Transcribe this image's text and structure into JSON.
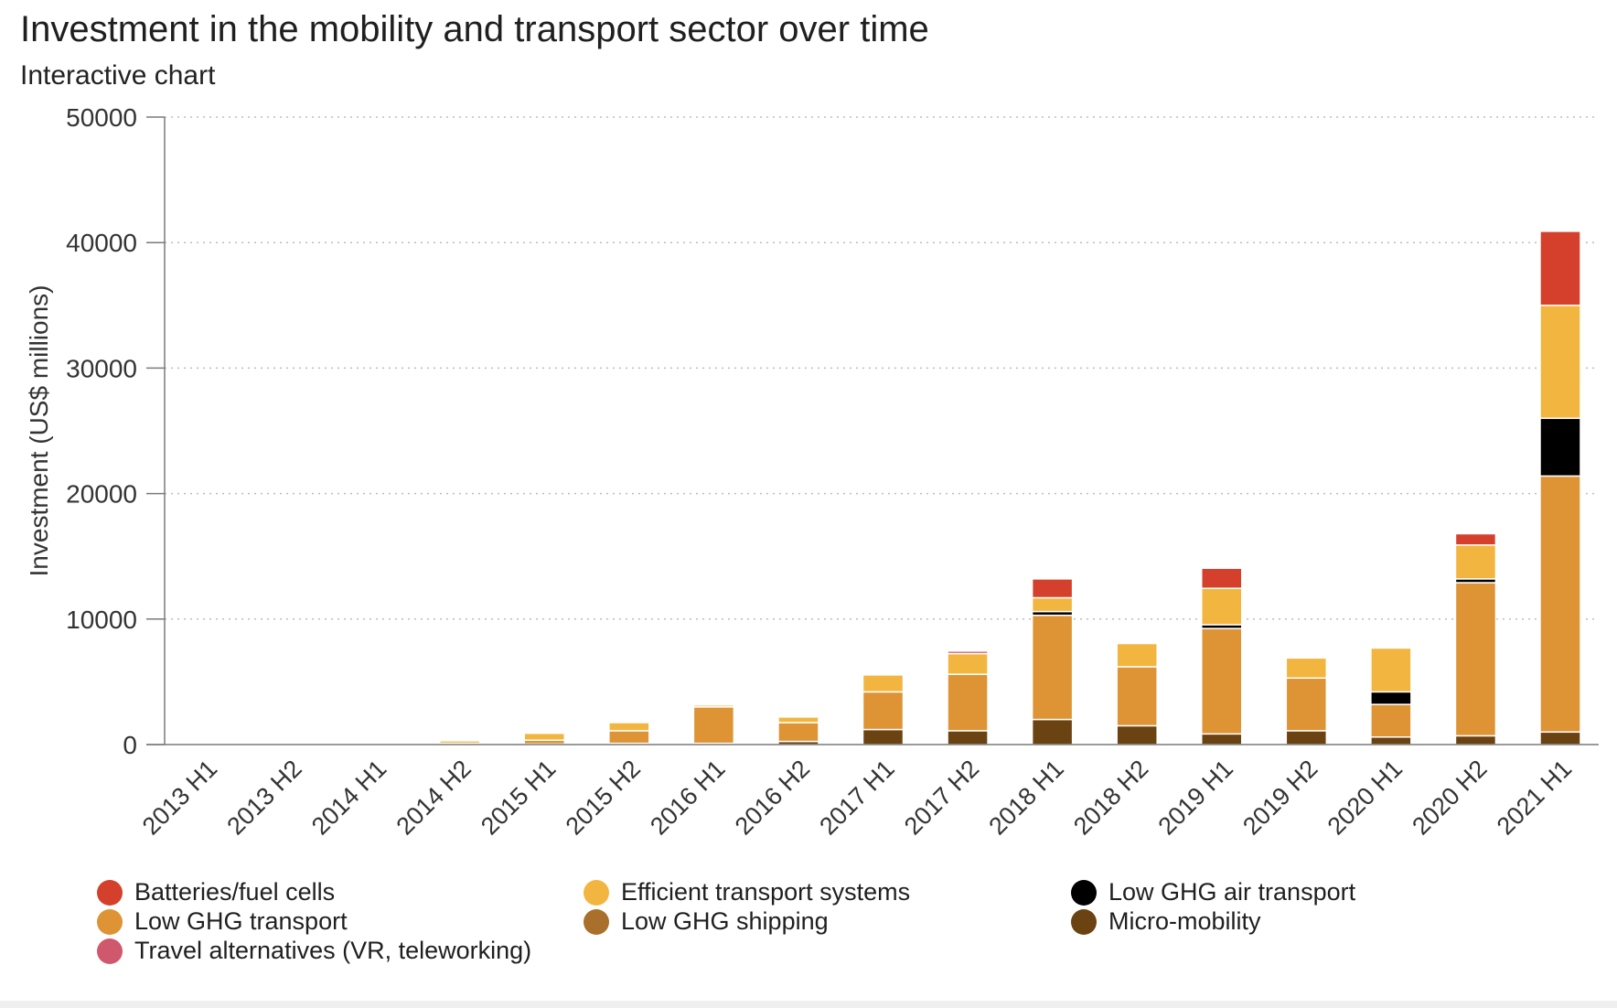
{
  "title": "Investment in the mobility and transport sector over time",
  "subtitle": "Interactive chart",
  "chart_data": {
    "type": "bar",
    "stacked": true,
    "title": "Investment in the mobility and transport sector over time",
    "subtitle": "Interactive chart",
    "xlabel": "",
    "ylabel": "Investment (US$ millions)",
    "ylim": [
      0,
      50000
    ],
    "yticks": [
      0,
      10000,
      20000,
      30000,
      40000,
      50000
    ],
    "grid": true,
    "legend_position": "bottom",
    "categories": [
      "2013 H1",
      "2013 H2",
      "2014 H1",
      "2014 H2",
      "2015 H1",
      "2015 H2",
      "2016 H1",
      "2016 H2",
      "2017 H1",
      "2017 H2",
      "2018 H1",
      "2018 H2",
      "2019 H1",
      "2019 H2",
      "2020 H1",
      "2020 H2",
      "2021 H1"
    ],
    "series": [
      {
        "name": "Micro-mobility",
        "color": "#6b4211",
        "values": [
          0,
          0,
          0,
          0,
          50,
          100,
          100,
          250,
          1200,
          1100,
          2000,
          1500,
          850,
          1100,
          600,
          700,
          1000
        ]
      },
      {
        "name": "Low GHG shipping",
        "color": "#a8702a",
        "values": [
          0,
          0,
          0,
          0,
          0,
          0,
          0,
          0,
          0,
          0,
          0,
          0,
          0,
          0,
          0,
          0,
          0
        ]
      },
      {
        "name": "Low GHG transport",
        "color": "#de9335",
        "values": [
          0,
          0,
          0,
          100,
          300,
          1000,
          2900,
          1500,
          3000,
          4500,
          8300,
          4700,
          8400,
          4200,
          2600,
          12200,
          20400
        ]
      },
      {
        "name": "Low GHG air transport",
        "color": "#000000",
        "values": [
          0,
          0,
          0,
          0,
          0,
          0,
          0,
          0,
          0,
          0,
          300,
          0,
          300,
          0,
          1000,
          300,
          4600
        ]
      },
      {
        "name": "Efficient transport systems",
        "color": "#f2b640",
        "values": [
          0,
          0,
          0,
          200,
          550,
          650,
          150,
          450,
          1350,
          1650,
          1100,
          1850,
          2900,
          1600,
          3500,
          2700,
          9000
        ]
      },
      {
        "name": "Batteries/fuel cells",
        "color": "#d4402c",
        "values": [
          0,
          0,
          0,
          0,
          0,
          0,
          0,
          0,
          0,
          0,
          1500,
          0,
          1600,
          0,
          100,
          900,
          5900
        ]
      },
      {
        "name": "Travel alternatives (VR, teleworking)",
        "color": "#d0586c",
        "values": [
          0,
          0,
          0,
          0,
          0,
          0,
          0,
          0,
          0,
          200,
          0,
          0,
          0,
          0,
          100,
          0,
          0
        ]
      }
    ]
  },
  "legend": [
    {
      "label": "Batteries/fuel cells",
      "color": "#d4402c"
    },
    {
      "label": "Efficient transport systems",
      "color": "#f2b640"
    },
    {
      "label": "Low GHG air transport",
      "color": "#000000"
    },
    {
      "label": "Low GHG transport",
      "color": "#de9335"
    },
    {
      "label": "Low GHG shipping",
      "color": "#a8702a"
    },
    {
      "label": "Micro-mobility",
      "color": "#6b4211"
    },
    {
      "label": "Travel alternatives (VR, teleworking)",
      "color": "#d0586c"
    }
  ]
}
